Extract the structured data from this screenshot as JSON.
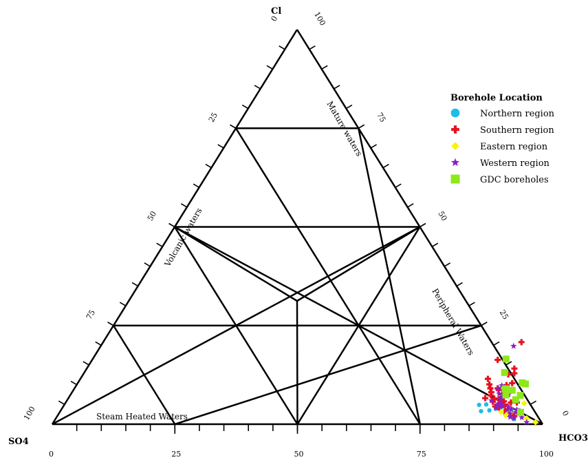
{
  "chart_data": {
    "type": "scatter",
    "subtype": "ternary",
    "vertices": {
      "top": "Cl",
      "left": "SO4",
      "right": "HCO3"
    },
    "ticks": [
      0,
      25,
      50,
      75,
      100
    ],
    "axis_labels": {
      "bottom": [
        "0",
        "25",
        "50",
        "75",
        "100"
      ],
      "left": [
        "100",
        "75",
        "50",
        "25",
        "0"
      ],
      "right": [
        "100",
        "75",
        "50",
        "25",
        "0"
      ]
    },
    "region_labels": [
      "Mature waters",
      "Volcanic waters",
      "Peripheral Waters",
      "Steam Heated Waters"
    ],
    "legend": {
      "title": "Borehole Location",
      "position": "top-right",
      "entries": [
        {
          "name": "Northern region",
          "color": "#1ebde8",
          "marker": "circle"
        },
        {
          "name": "Southern region",
          "color": "#e8121e",
          "marker": "plus"
        },
        {
          "name": "Eastern region",
          "color": "#f7f40a",
          "marker": "diamond"
        },
        {
          "name": "Western region",
          "color": "#8a1fc7",
          "marker": "star"
        },
        {
          "name": "GDC boreholes",
          "color": "#8ee81a",
          "marker": "square"
        }
      ]
    },
    "series": [
      {
        "name": "Northern region",
        "points": [
          [
            3.3,
            85.8
          ],
          [
            4.9,
            84.6
          ],
          [
            5.0,
            86.0
          ],
          [
            5.9,
            86.8
          ],
          [
            5.3,
            89.4
          ],
          [
            4.1,
            89.4
          ],
          [
            3.8,
            91.8
          ],
          [
            2.2,
            92.1
          ],
          [
            1.3,
            93.5
          ],
          [
            3.5,
            93.5
          ],
          [
            3.5,
            87.4
          ],
          [
            3.9,
            88.5
          ]
        ]
      },
      {
        "name": "Southern region",
        "points": [
          [
            20.8,
            85.3
          ],
          [
            14.1,
            87.2
          ],
          [
            12.6,
            86.7
          ],
          [
            9.9,
            87.7
          ],
          [
            8.8,
            88.2
          ],
          [
            8.2,
            88.1
          ],
          [
            7.7,
            88.1
          ],
          [
            5.7,
            89.0
          ],
          [
            4.4,
            90.2
          ],
          [
            3.1,
            90.7
          ],
          [
            6.6,
            85.0
          ],
          [
            9.1,
            86.3
          ],
          [
            2.1,
            93.2
          ],
          [
            2.6,
            92.2
          ],
          [
            6.3,
            88.0
          ],
          [
            7.3,
            85.8
          ],
          [
            8.1,
            85.5
          ],
          [
            8.7,
            86.7
          ],
          [
            12.9,
            87.8
          ],
          [
            10.4,
            88.6
          ],
          [
            16.3,
            82.7
          ],
          [
            5.5,
            92.0
          ],
          [
            4.5,
            90.5
          ],
          [
            9.1,
            84.8
          ],
          [
            16.6,
            84.2
          ],
          [
            10.1,
            84.1
          ],
          [
            6.3,
            87.9
          ],
          [
            6.5,
            86.9
          ],
          [
            5.7,
            87.0
          ],
          [
            5.3,
            88.6
          ],
          [
            5.8,
            89.2
          ],
          [
            4.3,
            90.9
          ],
          [
            5.5,
            90.8
          ],
          [
            4.2,
            91.1
          ],
          [
            4.5,
            88.1
          ],
          [
            4.2,
            89.0
          ],
          [
            11.5,
            83.1
          ]
        ]
      },
      {
        "name": "Eastern region",
        "points": [
          [
            3.0,
            91.6
          ],
          [
            4.2,
            91.0
          ],
          [
            3.0,
            92.0
          ],
          [
            5.3,
            93.6
          ],
          [
            1.5,
            96.0
          ],
          [
            0.5,
            98.3
          ],
          [
            3.1,
            90.0
          ],
          [
            2.2,
            91.4
          ]
        ]
      },
      {
        "name": "Western region",
        "points": [
          [
            9.0,
            86.5
          ],
          [
            2.7,
            92.0
          ],
          [
            3.6,
            91.0
          ],
          [
            3.0,
            93.0
          ],
          [
            5.0,
            89.2
          ],
          [
            4.1,
            88.5
          ],
          [
            1.8,
            92.5
          ],
          [
            9.8,
            86.8
          ],
          [
            3.7,
            91.7
          ],
          [
            5.1,
            88.9
          ],
          [
            4.8,
            88.3
          ],
          [
            5.2,
            88.6
          ],
          [
            4.6,
            89.4
          ],
          [
            4.3,
            90.9
          ],
          [
            6.6,
            88.4
          ],
          [
            1.7,
            94.9
          ],
          [
            1.5,
            93.4
          ],
          [
            0.5,
            96.5
          ],
          [
            7.7,
            87.3
          ],
          [
            3.7,
            92.9
          ],
          [
            19.8,
            84.2
          ],
          [
            6.4,
            88.2
          ],
          [
            6.9,
            88.3
          ],
          [
            7.5,
            89.3
          ],
          [
            6.0,
            86.6
          ]
        ]
      },
      {
        "name": "GDC boreholes",
        "points": [
          [
            8.6,
            89.5
          ],
          [
            13.1,
            85.7
          ],
          [
            8.6,
            88.5
          ],
          [
            16.5,
            84.3
          ],
          [
            10.2,
            91.4
          ],
          [
            10.5,
            90.6
          ],
          [
            7.3,
            91.8
          ],
          [
            6.2,
            91.4
          ],
          [
            7.4,
            88.8
          ],
          [
            9.0,
            87.9
          ],
          [
            3.0,
            94.0
          ],
          [
            3.0,
            94.0
          ]
        ]
      }
    ]
  }
}
